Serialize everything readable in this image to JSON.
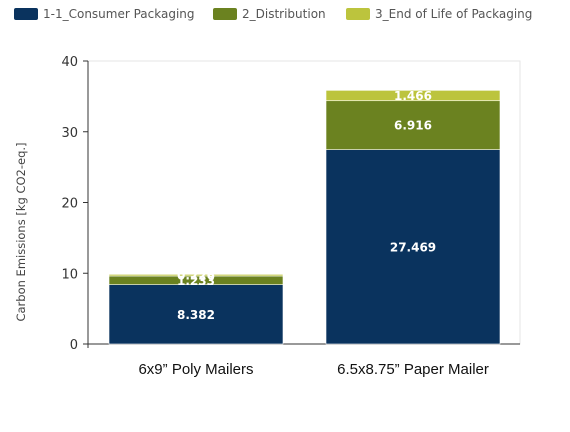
{
  "chart_data": {
    "type": "bar",
    "stacked": true,
    "categories": [
      "6x9” Poly Mailers",
      "6.5x8.75” Paper Mailer"
    ],
    "series": [
      {
        "name": "1-1_Consumer Packaging",
        "values": [
          8.382,
          27.469
        ],
        "labels": [
          "8.382",
          "27.469"
        ],
        "color": "#0a335e"
      },
      {
        "name": "2_Distribution",
        "values": [
          1.233,
          6.916
        ],
        "labels": [
          "1.233",
          "6.916"
        ],
        "color": "#6b8220"
      },
      {
        "name": "3_End of Life of Packaging",
        "values": [
          0.226,
          1.466
        ],
        "labels": [
          "0.226",
          "1.466"
        ],
        "color": "#bcc43d"
      }
    ],
    "ylabel": "Carbon Emissions [kg CO2-eq.]",
    "ylim": [
      0,
      40
    ],
    "yticks": [
      "0",
      "10",
      "20",
      "30",
      "40"
    ],
    "legend_position": "top-left",
    "grid": false
  }
}
